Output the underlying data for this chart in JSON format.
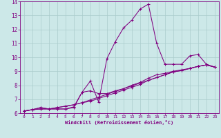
{
  "xlabel": "Windchill (Refroidissement éolien,°C)",
  "background_color": "#cce8e8",
  "grid_color": "#aacccc",
  "line_color": "#800080",
  "xlim": [
    -0.5,
    23.5
  ],
  "ylim": [
    6,
    14
  ],
  "xticks": [
    0,
    1,
    2,
    3,
    4,
    5,
    6,
    7,
    8,
    9,
    10,
    11,
    12,
    13,
    14,
    15,
    16,
    17,
    18,
    19,
    20,
    21,
    22,
    23
  ],
  "yticks": [
    6,
    7,
    8,
    9,
    10,
    11,
    12,
    13,
    14
  ],
  "series": [
    [
      6.15,
      6.25,
      6.4,
      6.3,
      6.3,
      6.3,
      6.4,
      7.5,
      8.3,
      6.8,
      9.9,
      11.1,
      12.1,
      12.65,
      13.45,
      13.8,
      11.0,
      9.5,
      9.5,
      9.5,
      10.1,
      10.2,
      9.5,
      9.3
    ],
    [
      6.15,
      6.25,
      6.4,
      6.3,
      6.3,
      6.3,
      6.45,
      7.5,
      7.6,
      7.4,
      7.4,
      7.6,
      7.75,
      8.0,
      8.2,
      8.5,
      8.75,
      8.85,
      9.0,
      9.1,
      9.2,
      9.35,
      9.45,
      9.3
    ],
    [
      6.15,
      6.25,
      6.3,
      6.3,
      6.4,
      6.5,
      6.6,
      6.75,
      6.95,
      7.15,
      7.35,
      7.55,
      7.75,
      7.95,
      8.15,
      8.35,
      8.55,
      8.75,
      8.95,
      9.05,
      9.2,
      9.35,
      9.45,
      9.3
    ],
    [
      6.15,
      6.25,
      6.3,
      6.3,
      6.4,
      6.5,
      6.6,
      6.75,
      6.85,
      7.05,
      7.25,
      7.45,
      7.65,
      7.85,
      8.05,
      8.35,
      8.55,
      8.75,
      8.95,
      9.05,
      9.2,
      9.35,
      9.45,
      9.3
    ]
  ]
}
